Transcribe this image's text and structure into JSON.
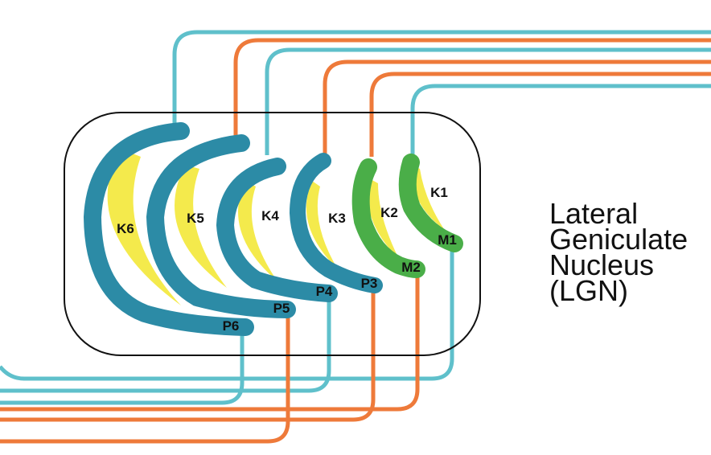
{
  "title_lines": [
    "Lateral",
    "Geniculate",
    "Nucleus",
    "(LGN)"
  ],
  "layers": {
    "k6": "K6",
    "k5": "K5",
    "k4": "K4",
    "k3": "K3",
    "k2": "K2",
    "k1": "K1",
    "p6": "P6",
    "p5": "P5",
    "p4": "P4",
    "p3": "P3",
    "m2": "M2",
    "m1": "M1"
  },
  "colors": {
    "parvo": "#2c8ba6",
    "magno": "#4aae48",
    "konio": "#f4ea4c",
    "fiber_cyan": "#5fc0cb",
    "fiber_orange": "#ee7a3a",
    "outline": "#111111"
  }
}
